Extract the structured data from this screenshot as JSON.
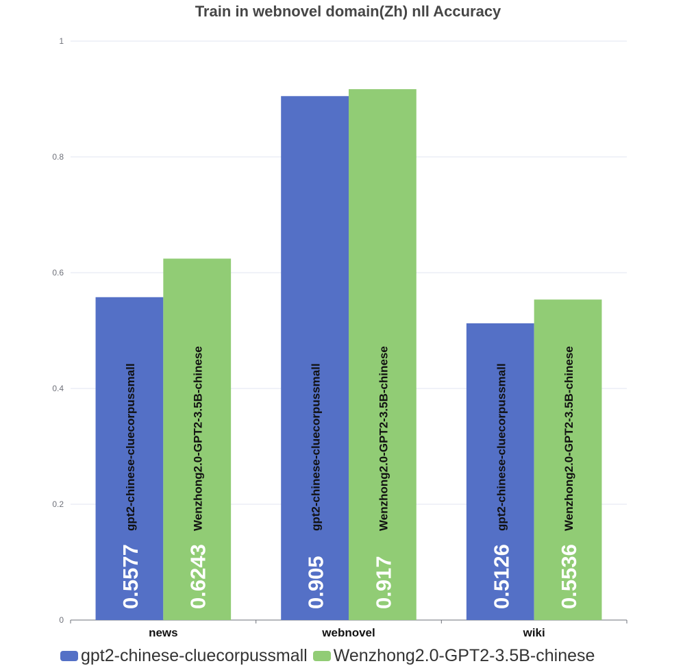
{
  "chart_data": {
    "type": "bar",
    "title": "Train in webnovel domain(Zh) nll Accuracy",
    "categories": [
      "news",
      "webnovel",
      "wiki"
    ],
    "series": [
      {
        "name": "gpt2-chinese-cluecorpussmall",
        "values": [
          0.5577,
          0.905,
          0.5126
        ],
        "labels": [
          "0.5577",
          "0.905",
          "0.5126"
        ],
        "color": "#5470c6"
      },
      {
        "name": "Wenzhong2.0-GPT2-3.5B-chinese",
        "values": [
          0.6243,
          0.917,
          0.5536
        ],
        "labels": [
          "0.6243",
          "0.917",
          "0.5536"
        ],
        "color": "#91cc75"
      }
    ],
    "ylim": [
      0,
      1
    ],
    "yticks": [
      "0",
      "0.2",
      "0.4",
      "0.6",
      "0.8",
      "1"
    ],
    "grid": true,
    "legend_position": "bottom-left",
    "bar_labels": "series name and value inside each bar, rotated vertically"
  }
}
